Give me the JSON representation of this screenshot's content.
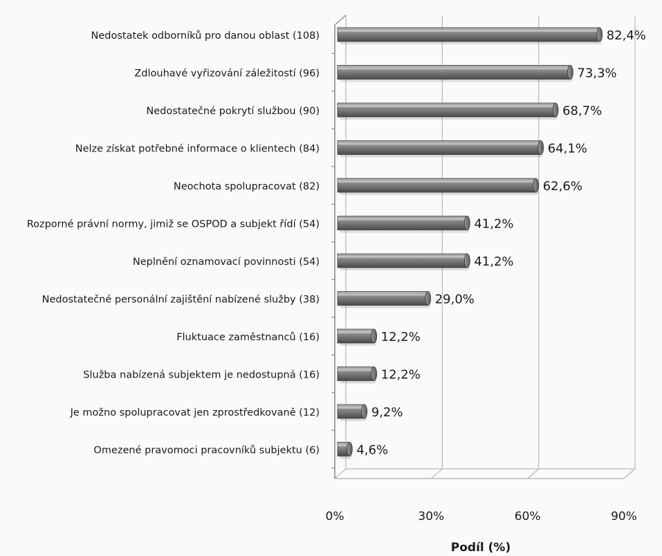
{
  "chart_data": {
    "type": "bar",
    "orientation": "horizontal",
    "style": "3d-cylinder",
    "categories": [
      "Nedostatek odborníků pro danou oblast (108)",
      "Zdlouhavé vyřizování záležitostí (96)",
      "Nedostatečné pokrytí službou (90)",
      "Nelze získat potřebné informace o klientech (84)",
      "Neochota spolupracovat (82)",
      "Rozporné právní normy, jimiž se OSPOD a subjekt řídí (54)",
      "Neplnění oznamovací povinnosti (54)",
      "Nedostatečné personální zajištění nabízené služby (38)",
      "Fluktuace zaměstnanců (16)",
      "Služba nabízená subjektem je nedostupná (16)",
      "Je možno spolupracovat jen zprostředkovaně (12)",
      "Omezené pravomoci pracovníků subjektu (6)"
    ],
    "values": [
      82.4,
      73.3,
      68.7,
      64.1,
      62.6,
      41.2,
      41.2,
      29.0,
      12.2,
      12.2,
      9.2,
      4.6
    ],
    "data_labels": [
      "82,4%",
      "73,3%",
      "68,7%",
      "64,1%",
      "62,6%",
      "41,2%",
      "41,2%",
      "29,0%",
      "12,2%",
      "12,2%",
      "9,2%",
      "4,6%"
    ],
    "xticks": [
      0,
      30,
      60,
      90
    ],
    "xtick_labels": [
      "0%",
      "30%",
      "60%",
      "90%"
    ],
    "xlim": [
      0,
      90
    ],
    "xlabel": "Podíl (%)",
    "title": "",
    "grid": true,
    "legend": "none",
    "bar_color": "#8a8a8a",
    "gridline_color": "#b8b8b8"
  }
}
